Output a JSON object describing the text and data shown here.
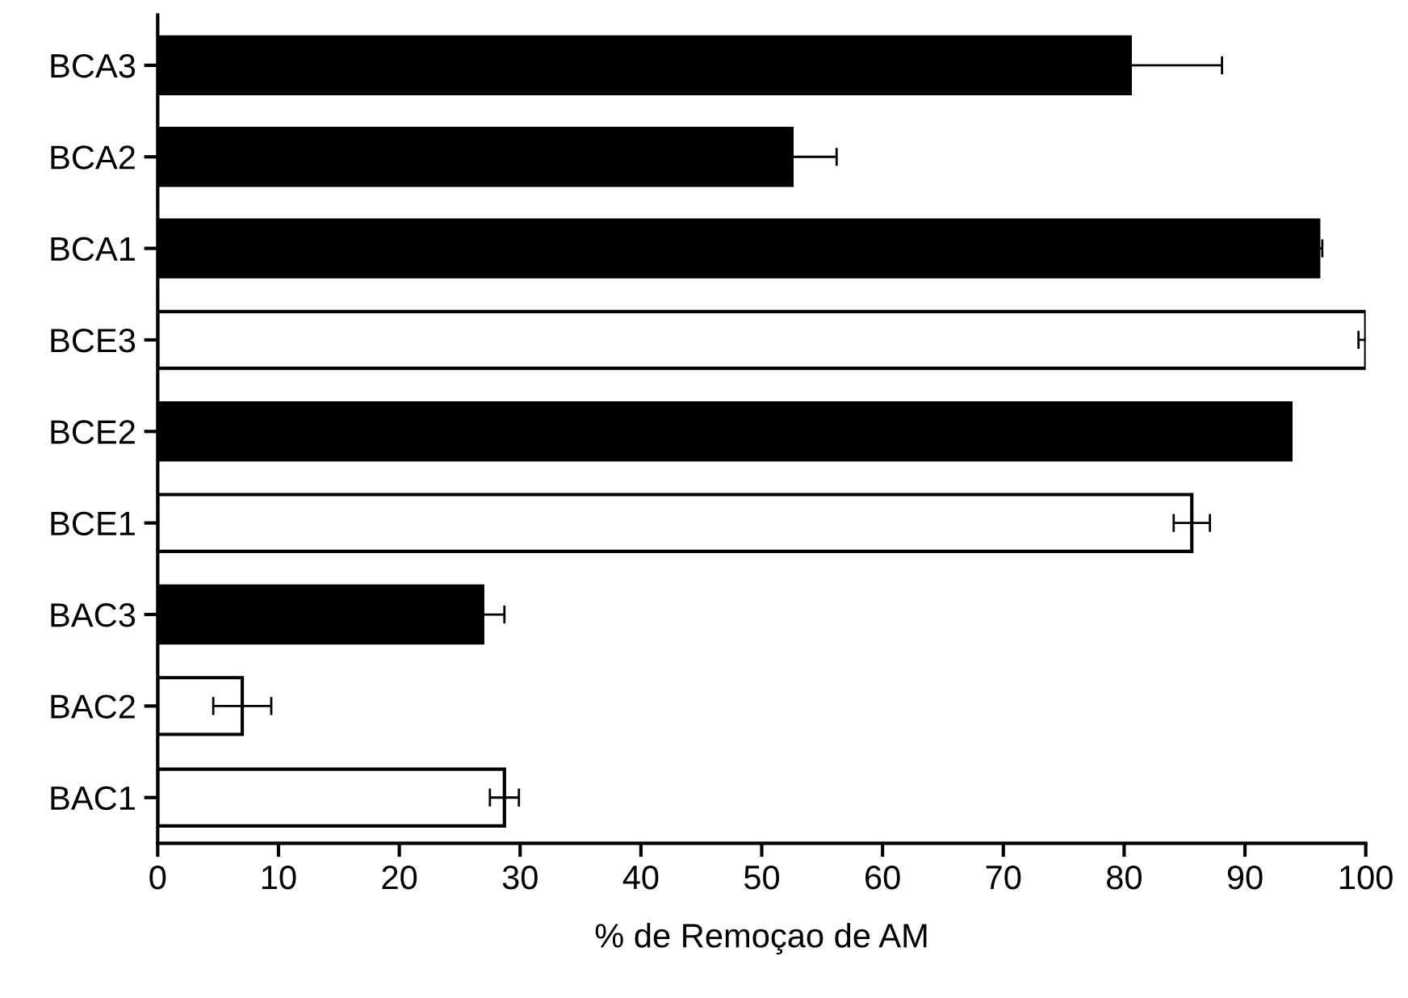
{
  "chart_data": {
    "type": "bar",
    "orientation": "horizontal",
    "xlabel": "% de Remoçao de AM",
    "categories": [
      "BCA3",
      "BCA2",
      "BCA1",
      "BCE3",
      "BCE2",
      "BCE1",
      "BAC3",
      "BAC2",
      "BAC1"
    ],
    "values": [
      80.5,
      52.5,
      96.1,
      100.0,
      93.8,
      85.6,
      26.9,
      7.0,
      28.7
    ],
    "errors": [
      7.6,
      3.7,
      0.3,
      0.6,
      null,
      1.5,
      1.8,
      2.4,
      1.2
    ],
    "colors": [
      "#000000",
      "#000000",
      "#000000",
      "#ffffff",
      "#000000",
      "#ffffff",
      "#000000",
      "#ffffff",
      "#ffffff"
    ],
    "xlim": [
      0,
      100
    ],
    "xticks": [
      0,
      10,
      20,
      30,
      40,
      50,
      60,
      70,
      80,
      90,
      100
    ],
    "grid": false
  }
}
